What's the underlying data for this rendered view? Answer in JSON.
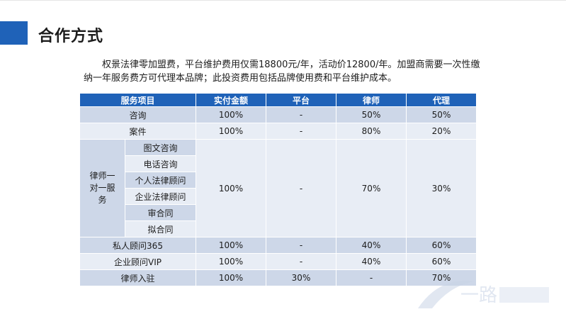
{
  "title": "合作方式",
  "intro": "权景法律零加盟费，平台维护费用仅需18800元/年，活动价12800/年。加盟商需要一次性缴纳一年服务费方可代理本品牌；此投资费用包括品牌使用费和平台维护成本。",
  "table": {
    "headers": [
      "服务项目",
      "实付金额",
      "平台",
      "律师",
      "代理"
    ],
    "rows_top": [
      {
        "service": "咨询",
        "paid": "100%",
        "platform": "-",
        "lawyer": "50%",
        "agent": "50%"
      },
      {
        "service": "案件",
        "paid": "100%",
        "platform": "-",
        "lawyer": "80%",
        "agent": "20%"
      }
    ],
    "group": {
      "label": "律师一对一服务",
      "subs": [
        "图文咨询",
        "电话咨询",
        "个人法律顾问",
        "企业法律顾问",
        "审合同",
        "拟合同"
      ],
      "paid": "100%",
      "platform": "-",
      "lawyer": "70%",
      "agent": "30%"
    },
    "rows_bottom": [
      {
        "service": "私人顾问365",
        "paid": "100%",
        "platform": "-",
        "lawyer": "40%",
        "agent": "60%"
      },
      {
        "service": "企业顾问VIP",
        "paid": "100%",
        "platform": "-",
        "lawyer": "40%",
        "agent": "60%"
      },
      {
        "service": "律师入驻",
        "paid": "100%",
        "platform": "30%",
        "lawyer": "-",
        "agent": "70%"
      }
    ]
  },
  "watermark": "一路",
  "colors": {
    "accent": "#1f62b8",
    "row_dark": "#cdd7e8",
    "row_light": "#e8edf5"
  }
}
